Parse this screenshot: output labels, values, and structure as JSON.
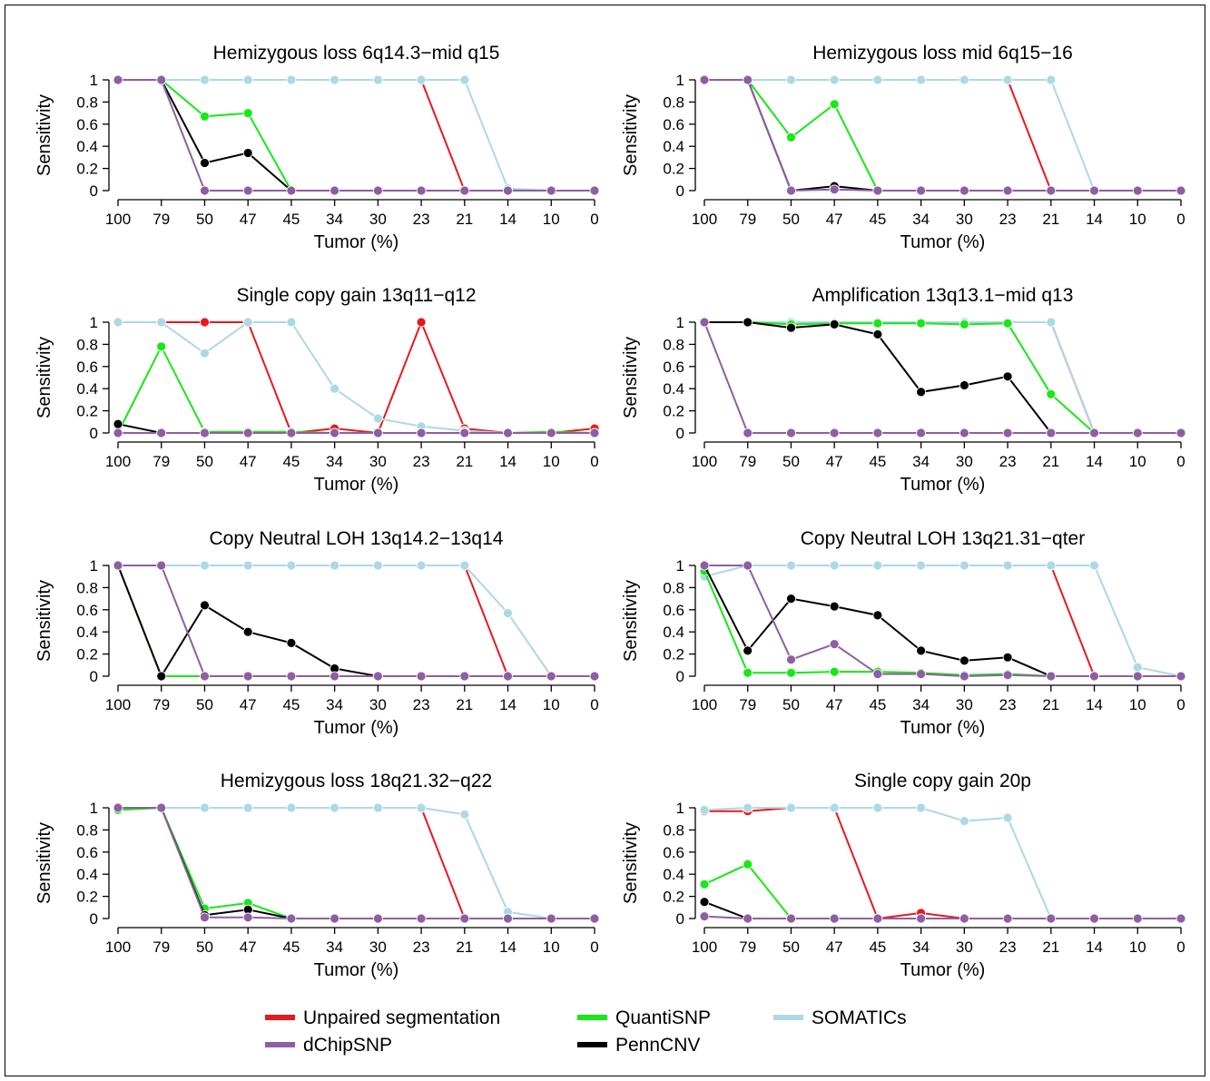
{
  "figure": {
    "x_ticks": [
      "100",
      "79",
      "50",
      "47",
      "45",
      "34",
      "30",
      "23",
      "21",
      "14",
      "10",
      "0"
    ],
    "y_ticks": [
      "0",
      "0.2",
      "0.4",
      "0.6",
      "0.8",
      "1"
    ],
    "legend": [
      {
        "key": "unpaired",
        "label": "Unpaired segmentation",
        "color": "#e8191c"
      },
      {
        "key": "quantisnp",
        "label": "QuantiSNP",
        "color": "#17e817"
      },
      {
        "key": "somatics",
        "label": "SOMATICs",
        "color": "#add8e6"
      },
      {
        "key": "dchip",
        "label": "dChipSNP",
        "color": "#8e5ea2"
      },
      {
        "key": "penncnv",
        "label": "PennCNV",
        "color": "#000000"
      }
    ]
  },
  "chart_data": [
    {
      "type": "line",
      "title": "Hemizygous loss 6q14.3−mid q15",
      "xlabel": "Tumor (%)",
      "ylabel": "Sensitivity",
      "ylim": [
        0,
        1
      ],
      "x": [
        "100",
        "79",
        "50",
        "47",
        "45",
        "34",
        "30",
        "23",
        "21",
        "14",
        "10",
        "0"
      ],
      "series": [
        {
          "name": "Unpaired segmentation",
          "values": [
            1,
            1,
            1,
            1,
            1,
            1,
            1,
            1,
            0,
            0,
            0,
            0
          ]
        },
        {
          "name": "SOMATICs",
          "values": [
            1,
            1,
            1,
            1,
            1,
            1,
            1,
            1,
            1,
            0.02,
            0,
            0
          ]
        },
        {
          "name": "QuantiSNP",
          "values": [
            1,
            1,
            0.67,
            0.7,
            0,
            0,
            0,
            0,
            0,
            0,
            0,
            0
          ]
        },
        {
          "name": "PennCNV",
          "values": [
            1,
            1,
            0.25,
            0.34,
            0,
            0,
            0,
            0,
            0,
            0,
            0,
            0
          ]
        },
        {
          "name": "dChipSNP",
          "values": [
            1,
            1,
            0,
            0,
            0,
            0,
            0,
            0,
            0,
            0,
            0,
            0
          ]
        }
      ]
    },
    {
      "type": "line",
      "title": "Hemizygous loss mid 6q15−16",
      "xlabel": "Tumor (%)",
      "ylabel": "Sensitivity",
      "ylim": [
        0,
        1
      ],
      "x": [
        "100",
        "79",
        "50",
        "47",
        "45",
        "34",
        "30",
        "23",
        "21",
        "14",
        "10",
        "0"
      ],
      "series": [
        {
          "name": "Unpaired segmentation",
          "values": [
            1,
            1,
            1,
            1,
            1,
            1,
            1,
            1,
            0,
            0,
            0,
            0
          ]
        },
        {
          "name": "SOMATICs",
          "values": [
            1,
            1,
            1,
            1,
            1,
            1,
            1,
            1,
            1,
            0,
            0,
            0
          ]
        },
        {
          "name": "QuantiSNP",
          "values": [
            1,
            1,
            0.48,
            0.78,
            0,
            0,
            0,
            0,
            0,
            0,
            0,
            0
          ]
        },
        {
          "name": "PennCNV",
          "values": [
            1,
            1,
            0,
            0.04,
            0,
            0,
            0,
            0,
            0,
            0,
            0,
            0
          ]
        },
        {
          "name": "dChipSNP",
          "values": [
            1,
            1,
            0,
            0.01,
            0,
            0,
            0,
            0,
            0,
            0,
            0,
            0
          ]
        }
      ]
    },
    {
      "type": "line",
      "title": "Single copy gain 13q11−q12",
      "xlabel": "Tumor (%)",
      "ylabel": "Sensitivity",
      "ylim": [
        0,
        1
      ],
      "x": [
        "100",
        "79",
        "50",
        "47",
        "45",
        "34",
        "30",
        "23",
        "21",
        "14",
        "10",
        "0"
      ],
      "series": [
        {
          "name": "SOMATICs",
          "values": [
            1,
            1,
            0.72,
            1,
            1,
            0.4,
            0.13,
            0.06,
            0.02,
            0,
            0,
            0
          ]
        },
        {
          "name": "Unpaired segmentation",
          "values": [
            1,
            1,
            1,
            1,
            0,
            0.04,
            0,
            1,
            0.04,
            0,
            0,
            0.04
          ]
        },
        {
          "name": "QuantiSNP",
          "values": [
            0,
            0.78,
            0.01,
            0.01,
            0.01,
            0,
            0,
            0,
            0,
            0,
            0.01,
            0
          ]
        },
        {
          "name": "PennCNV",
          "values": [
            0.08,
            0,
            0,
            0,
            0,
            0,
            0,
            0,
            0,
            0,
            0,
            0
          ]
        },
        {
          "name": "dChipSNP",
          "values": [
            0,
            0,
            0,
            0,
            0,
            0,
            0,
            0,
            0,
            0,
            0,
            0
          ]
        }
      ]
    },
    {
      "type": "line",
      "title": "Amplification 13q13.1−mid q13",
      "xlabel": "Tumor (%)",
      "ylabel": "Sensitivity",
      "ylim": [
        0,
        1
      ],
      "x": [
        "100",
        "79",
        "50",
        "47",
        "45",
        "34",
        "30",
        "23",
        "21",
        "14",
        "10",
        "0"
      ],
      "series": [
        {
          "name": "Unpaired segmentation",
          "values": [
            1,
            1,
            1,
            1,
            1,
            1,
            1,
            1,
            1,
            0,
            0,
            0
          ]
        },
        {
          "name": "SOMATICs",
          "values": [
            1,
            1,
            1,
            1,
            1,
            1,
            1,
            1,
            1,
            0,
            0,
            0
          ]
        },
        {
          "name": "QuantiSNP",
          "values": [
            1,
            1,
            0.98,
            0.99,
            0.99,
            0.99,
            0.98,
            0.99,
            0.35,
            0,
            0,
            0
          ]
        },
        {
          "name": "PennCNV",
          "values": [
            1,
            1,
            0.95,
            0.98,
            0.89,
            0.37,
            0.43,
            0.51,
            0,
            0,
            0,
            0
          ]
        },
        {
          "name": "dChipSNP",
          "values": [
            1,
            0,
            0,
            0,
            0,
            0,
            0,
            0,
            0,
            0,
            0,
            0
          ]
        }
      ]
    },
    {
      "type": "line",
      "title": "Copy Neutral LOH 13q14.2−13q14",
      "xlabel": "Tumor (%)",
      "ylabel": "Sensitivity",
      "ylim": [
        0,
        1
      ],
      "x": [
        "100",
        "79",
        "50",
        "47",
        "45",
        "34",
        "30",
        "23",
        "21",
        "14",
        "10",
        "0"
      ],
      "series": [
        {
          "name": "Unpaired segmentation",
          "values": [
            1,
            1,
            1,
            1,
            1,
            1,
            1,
            1,
            1,
            0,
            0,
            0
          ]
        },
        {
          "name": "SOMATICs",
          "values": [
            1,
            1,
            1,
            1,
            1,
            1,
            1,
            1,
            1,
            0.57,
            0,
            0
          ]
        },
        {
          "name": "QuantiSNP",
          "values": [
            1,
            0,
            0,
            0,
            0,
            0,
            0,
            0,
            0,
            0,
            0,
            0
          ]
        },
        {
          "name": "PennCNV",
          "values": [
            1,
            0,
            0.64,
            0.4,
            0.3,
            0.07,
            0,
            0,
            0,
            0,
            0,
            0
          ]
        },
        {
          "name": "dChipSNP",
          "values": [
            1,
            1,
            0,
            0,
            0,
            0,
            0,
            0,
            0,
            0,
            0,
            0
          ]
        }
      ]
    },
    {
      "type": "line",
      "title": "Copy Neutral LOH 13q21.31−qter",
      "xlabel": "Tumor (%)",
      "ylabel": "Sensitivity",
      "ylim": [
        0,
        1
      ],
      "x": [
        "100",
        "79",
        "50",
        "47",
        "45",
        "34",
        "30",
        "23",
        "21",
        "14",
        "10",
        "0"
      ],
      "series": [
        {
          "name": "Unpaired segmentation",
          "values": [
            1,
            1,
            1,
            1,
            1,
            1,
            1,
            1,
            1,
            0,
            0,
            0
          ]
        },
        {
          "name": "SOMATICs",
          "values": [
            0.9,
            1,
            1,
            1,
            1,
            1,
            1,
            1,
            1,
            1,
            0.08,
            0
          ]
        },
        {
          "name": "QuantiSNP",
          "values": [
            0.95,
            0.03,
            0.03,
            0.04,
            0.04,
            0.03,
            0.01,
            0.02,
            0,
            0,
            0,
            0
          ]
        },
        {
          "name": "PennCNV",
          "values": [
            1,
            0.23,
            0.7,
            0.63,
            0.55,
            0.23,
            0.14,
            0.17,
            0,
            0,
            0,
            0
          ]
        },
        {
          "name": "dChipSNP",
          "values": [
            1,
            1,
            0.15,
            0.29,
            0.02,
            0.02,
            0,
            0.01,
            0,
            0,
            0,
            0
          ]
        }
      ]
    },
    {
      "type": "line",
      "title": "Hemizygous loss 18q21.32−q22",
      "xlabel": "Tumor (%)",
      "ylabel": "Sensitivity",
      "ylim": [
        0,
        1
      ],
      "x": [
        "100",
        "79",
        "50",
        "47",
        "45",
        "34",
        "30",
        "23",
        "21",
        "14",
        "10",
        "0"
      ],
      "series": [
        {
          "name": "Unpaired segmentation",
          "values": [
            1,
            1,
            1,
            1,
            1,
            1,
            1,
            1,
            0,
            0,
            0,
            0
          ]
        },
        {
          "name": "SOMATICs",
          "values": [
            0.98,
            1,
            1,
            1,
            1,
            1,
            1,
            1,
            0.94,
            0.06,
            0,
            0
          ]
        },
        {
          "name": "QuantiSNP",
          "values": [
            0.98,
            1,
            0.09,
            0.14,
            0,
            0,
            0,
            0,
            0,
            0,
            0,
            0
          ]
        },
        {
          "name": "PennCNV",
          "values": [
            1,
            1,
            0.03,
            0.08,
            0,
            0,
            0,
            0,
            0,
            0,
            0,
            0
          ]
        },
        {
          "name": "dChipSNP",
          "values": [
            1,
            1,
            0.01,
            0.01,
            0,
            0,
            0,
            0,
            0,
            0,
            0,
            0
          ]
        }
      ]
    },
    {
      "type": "line",
      "title": "Single copy gain 20p",
      "xlabel": "Tumor (%)",
      "ylabel": "Sensitivity",
      "ylim": [
        0,
        1
      ],
      "x": [
        "100",
        "79",
        "50",
        "47",
        "45",
        "34",
        "30",
        "23",
        "21",
        "14",
        "10",
        "0"
      ],
      "series": [
        {
          "name": "SOMATICs",
          "values": [
            0.98,
            1,
            1,
            1,
            1,
            1,
            0.88,
            0.91,
            0,
            0,
            0,
            0
          ]
        },
        {
          "name": "Unpaired segmentation",
          "values": [
            0.97,
            0.97,
            1,
            1,
            0,
            0.05,
            0,
            0,
            0,
            0,
            0,
            0
          ]
        },
        {
          "name": "QuantiSNP",
          "values": [
            0.31,
            0.49,
            0,
            0,
            0,
            0,
            0,
            0,
            0,
            0,
            0,
            0
          ]
        },
        {
          "name": "PennCNV",
          "values": [
            0.15,
            0,
            0,
            0,
            0,
            0,
            0,
            0,
            0,
            0,
            0,
            0
          ]
        },
        {
          "name": "dChipSNP",
          "values": [
            0.02,
            0,
            0,
            0,
            0,
            0,
            0,
            0,
            0,
            0,
            0,
            0
          ]
        }
      ]
    }
  ]
}
